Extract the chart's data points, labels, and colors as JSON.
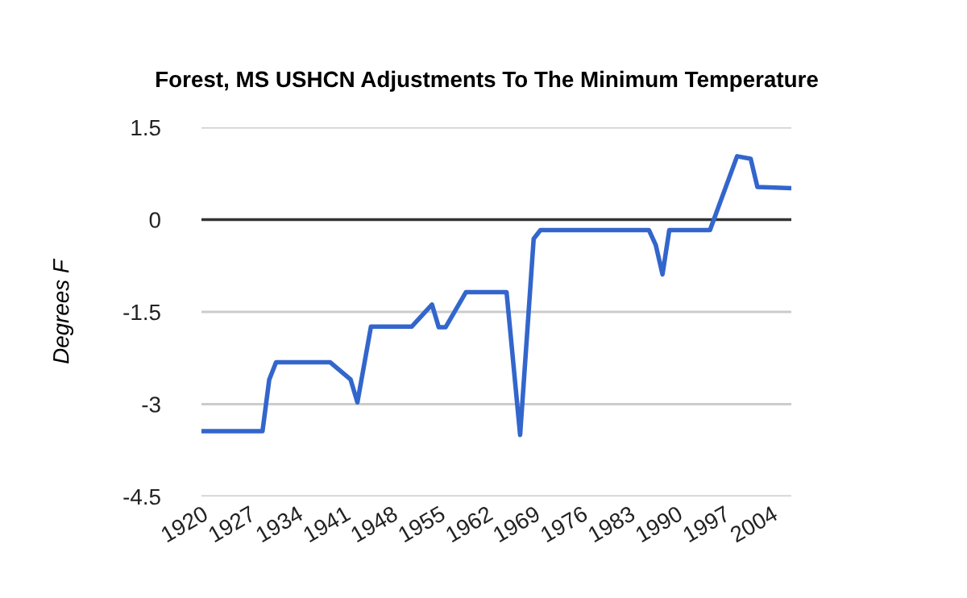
{
  "chart_data": {
    "type": "line",
    "title": "Forest, MS USHCN Adjustments To The Minimum Temperature",
    "ylabel": "Degrees F",
    "x": [
      1920,
      1929,
      1930,
      1931,
      1939,
      1942,
      1943,
      1945,
      1951,
      1954,
      1955,
      1956,
      1959,
      1965,
      1967,
      1969,
      1970,
      1986,
      1987,
      1988,
      1989,
      1995,
      1999,
      2001,
      2002,
      2007
    ],
    "series": [
      {
        "color": "#3366cc",
        "values": [
          -3.44,
          -3.44,
          -2.6,
          -2.32,
          -2.32,
          -2.6,
          -2.97,
          -1.74,
          -1.74,
          -1.38,
          -1.75,
          -1.75,
          -1.18,
          -1.18,
          -3.5,
          -0.31,
          -0.17,
          -0.17,
          -0.41,
          -0.89,
          -0.17,
          -0.17,
          1.03,
          0.99,
          0.53,
          0.51
        ]
      }
    ],
    "xlim": [
      1920,
      2007
    ],
    "xticks": [
      1920,
      1927,
      1934,
      1941,
      1948,
      1955,
      1962,
      1969,
      1976,
      1983,
      1990,
      1997,
      2004
    ],
    "ylim": [
      -4.5,
      1.5
    ],
    "yticks": [
      -4.5,
      -3,
      -1.5,
      0,
      1.5
    ],
    "ref_lines": [
      {
        "axis": "y",
        "value": 0,
        "color": "#333333"
      }
    ],
    "grid": "y",
    "legend": false,
    "marker": "none",
    "line_style": "solid"
  }
}
